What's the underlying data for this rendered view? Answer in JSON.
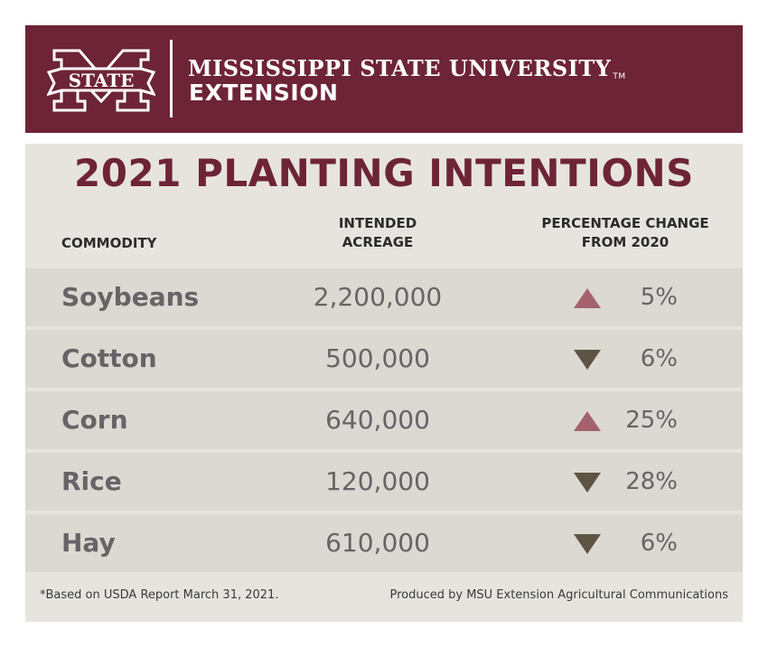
{
  "header": {
    "logo_text": "STATE",
    "university_name": "MISSISSIPPI STATE UNIVERSITY",
    "trademark": "TM",
    "subtitle": "EXTENSION"
  },
  "colors": {
    "maroon": "#6e2437",
    "up_arrow": "#a4626e",
    "down_arrow": "#5d5443",
    "panel_bg": "#e7e4df",
    "row_bg": "#dcd8d2",
    "text_gray": "#666466"
  },
  "chart_data": {
    "type": "table",
    "title": "2021 PLANTING INTENTIONS",
    "columns": {
      "commodity": "COMMODITY",
      "acreage_line1": "INTENDED",
      "acreage_line2": "ACREAGE",
      "change_line1": "PERCENTAGE CHANGE",
      "change_line2": "FROM 2020"
    },
    "rows": [
      {
        "commodity": "Soybeans",
        "acreage": "2,200,000",
        "change_pct": "5%",
        "direction": "up"
      },
      {
        "commodity": "Cotton",
        "acreage": "500,000",
        "change_pct": "6%",
        "direction": "down"
      },
      {
        "commodity": "Corn",
        "acreage": "640,000",
        "change_pct": "25%",
        "direction": "up"
      },
      {
        "commodity": "Rice",
        "acreage": "120,000",
        "change_pct": "28%",
        "direction": "down"
      },
      {
        "commodity": "Hay",
        "acreage": "610,000",
        "change_pct": "6%",
        "direction": "down"
      }
    ],
    "footnote": "*Based on USDA Report March 31, 2021.",
    "credit": "Produced by MSU Extension Agricultural Communications"
  }
}
